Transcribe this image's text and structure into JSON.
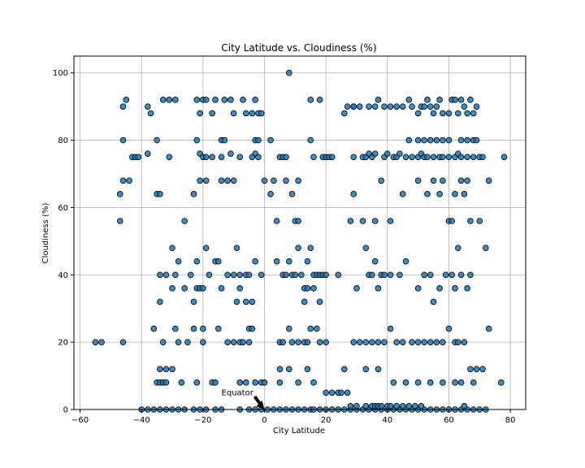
{
  "chart_data": {
    "type": "scatter",
    "title": "City Latitude vs. Cloudiness (%)",
    "xlabel": "City Latitude",
    "ylabel": "Cloudiness (%)",
    "xlim": [
      -62,
      85
    ],
    "ylim": [
      0,
      105
    ],
    "xticks": [
      -60,
      -40,
      -20,
      0,
      20,
      40,
      60,
      80
    ],
    "yticks": [
      0,
      20,
      40,
      60,
      80,
      100
    ],
    "grid": true,
    "marker_color": "#1f77b4",
    "marker_edge": "#000000",
    "annotation": {
      "text": "Equator",
      "x": 0,
      "y": 0,
      "text_x": -14,
      "text_y": 5
    },
    "points": [
      [
        -55,
        20
      ],
      [
        -53,
        20
      ],
      [
        -46,
        20
      ],
      [
        -47,
        56
      ],
      [
        -47,
        64
      ],
      [
        -46,
        68
      ],
      [
        -44,
        68
      ],
      [
        -43,
        75
      ],
      [
        -42,
        75
      ],
      [
        -41,
        75
      ],
      [
        -46,
        80
      ],
      [
        -46,
        90
      ],
      [
        -45,
        92
      ],
      [
        -38,
        76
      ],
      [
        -38,
        90
      ],
      [
        -37,
        88
      ],
      [
        -35,
        80
      ],
      [
        -33,
        92
      ],
      [
        -31,
        92
      ],
      [
        -29,
        92
      ],
      [
        -31,
        75
      ],
      [
        -35,
        64
      ],
      [
        -34,
        64
      ],
      [
        -40,
        0
      ],
      [
        -38,
        0
      ],
      [
        -36,
        0
      ],
      [
        -34,
        0
      ],
      [
        -32,
        0
      ],
      [
        -30,
        0
      ],
      [
        -28,
        0
      ],
      [
        -26,
        0
      ],
      [
        -23,
        0
      ],
      [
        -21,
        0
      ],
      [
        -19,
        0
      ],
      [
        -16,
        0
      ],
      [
        -14,
        0
      ],
      [
        -8,
        0
      ],
      [
        -5,
        0
      ],
      [
        -3,
        0
      ],
      [
        -1,
        0
      ],
      [
        -35,
        8
      ],
      [
        -34,
        8
      ],
      [
        -33,
        8
      ],
      [
        -32,
        8
      ],
      [
        -34,
        12
      ],
      [
        -32,
        12
      ],
      [
        -30,
        12
      ],
      [
        -27,
        8
      ],
      [
        -22,
        8
      ],
      [
        -17,
        8
      ],
      [
        -16,
        8
      ],
      [
        -8,
        8
      ],
      [
        -6,
        8
      ],
      [
        -3,
        8
      ],
      [
        -1,
        8
      ],
      [
        0,
        8
      ],
      [
        -36,
        24
      ],
      [
        -33,
        20
      ],
      [
        -29,
        24
      ],
      [
        -28,
        20
      ],
      [
        -25,
        20
      ],
      [
        -23,
        24
      ],
      [
        -20,
        20
      ],
      [
        -20,
        24
      ],
      [
        -15,
        24
      ],
      [
        -12,
        20
      ],
      [
        -10,
        20
      ],
      [
        -8,
        20
      ],
      [
        -7,
        20
      ],
      [
        -5,
        20
      ],
      [
        -5,
        24
      ],
      [
        -4,
        24
      ],
      [
        -34,
        32
      ],
      [
        -30,
        36
      ],
      [
        -26,
        36
      ],
      [
        -24,
        40
      ],
      [
        -23,
        32
      ],
      [
        -22,
        36
      ],
      [
        -21,
        36
      ],
      [
        -20,
        36
      ],
      [
        -14,
        36
      ],
      [
        -9,
        32
      ],
      [
        -8,
        36
      ],
      [
        -6,
        32
      ],
      [
        -4,
        32
      ],
      [
        -34,
        40
      ],
      [
        -32,
        40
      ],
      [
        -30,
        48
      ],
      [
        -29,
        40
      ],
      [
        -28,
        44
      ],
      [
        -22,
        44
      ],
      [
        -19,
        48
      ],
      [
        -18,
        40
      ],
      [
        -16,
        44
      ],
      [
        -15,
        44
      ],
      [
        -12,
        40
      ],
      [
        -10,
        40
      ],
      [
        -9,
        48
      ],
      [
        -8,
        40
      ],
      [
        -6,
        40
      ],
      [
        -5,
        40
      ],
      [
        -3,
        44
      ],
      [
        -1,
        40
      ],
      [
        -26,
        56
      ],
      [
        -23,
        64
      ],
      [
        -21,
        68
      ],
      [
        -19,
        68
      ],
      [
        -14,
        68
      ],
      [
        -12,
        68
      ],
      [
        -10,
        68
      ],
      [
        0,
        68
      ],
      [
        -17,
        75
      ],
      [
        -14,
        75
      ],
      [
        -11,
        76
      ],
      [
        -8,
        75
      ],
      [
        -4,
        75
      ],
      [
        -3,
        76
      ],
      [
        -2,
        75
      ],
      [
        -22,
        92
      ],
      [
        -21,
        88
      ],
      [
        -20,
        92
      ],
      [
        -19,
        92
      ],
      [
        -17,
        88
      ],
      [
        -16,
        92
      ],
      [
        -13,
        92
      ],
      [
        -11,
        92
      ],
      [
        -10,
        88
      ],
      [
        -7,
        92
      ],
      [
        -6,
        88
      ],
      [
        -4,
        88
      ],
      [
        -3,
        92
      ],
      [
        -2,
        88
      ],
      [
        -1,
        88
      ],
      [
        -22,
        80
      ],
      [
        -21,
        76
      ],
      [
        -20,
        75
      ],
      [
        -19,
        75
      ],
      [
        -14,
        80
      ],
      [
        -13,
        80
      ],
      [
        -3,
        80
      ],
      [
        -2,
        80
      ],
      [
        1,
        0
      ],
      [
        3,
        0
      ],
      [
        5,
        0
      ],
      [
        7,
        0
      ],
      [
        9,
        0
      ],
      [
        11,
        0
      ],
      [
        13,
        0
      ],
      [
        15,
        0
      ],
      [
        16,
        0
      ],
      [
        18,
        0
      ],
      [
        20,
        0
      ],
      [
        22,
        0
      ],
      [
        24,
        0
      ],
      [
        26,
        0
      ],
      [
        28,
        0
      ],
      [
        30,
        0
      ],
      [
        32,
        0
      ],
      [
        34,
        0
      ],
      [
        36,
        0
      ],
      [
        38,
        0
      ],
      [
        40,
        0
      ],
      [
        42,
        0
      ],
      [
        44,
        0
      ],
      [
        46,
        0
      ],
      [
        48,
        0
      ],
      [
        50,
        0
      ],
      [
        52,
        0
      ],
      [
        54,
        0
      ],
      [
        56,
        0
      ],
      [
        58,
        0
      ],
      [
        60,
        0
      ],
      [
        62,
        0
      ],
      [
        64,
        0
      ],
      [
        66,
        0
      ],
      [
        68,
        0
      ],
      [
        70,
        0
      ],
      [
        72,
        0
      ],
      [
        8,
        100
      ],
      [
        2,
        80
      ],
      [
        5,
        75
      ],
      [
        6,
        75
      ],
      [
        7,
        75
      ],
      [
        3,
        68
      ],
      [
        7,
        68
      ],
      [
        11,
        68
      ],
      [
        2,
        64
      ],
      [
        9,
        64
      ],
      [
        16,
        75
      ],
      [
        15,
        80
      ],
      [
        15,
        92
      ],
      [
        18,
        92
      ],
      [
        19,
        75
      ],
      [
        20,
        75
      ],
      [
        21,
        75
      ],
      [
        22,
        75
      ],
      [
        26,
        88
      ],
      [
        27,
        90
      ],
      [
        29,
        90
      ],
      [
        4,
        56
      ],
      [
        10,
        56
      ],
      [
        11,
        56
      ],
      [
        4,
        44
      ],
      [
        6,
        40
      ],
      [
        7,
        40
      ],
      [
        8,
        44
      ],
      [
        9,
        40
      ],
      [
        10,
        40
      ],
      [
        11,
        48
      ],
      [
        12,
        40
      ],
      [
        13,
        36
      ],
      [
        14,
        44
      ],
      [
        15,
        48
      ],
      [
        16,
        40
      ],
      [
        17,
        40
      ],
      [
        18,
        40
      ],
      [
        19,
        40
      ],
      [
        20,
        40
      ],
      [
        24,
        40
      ],
      [
        5,
        20
      ],
      [
        6,
        20
      ],
      [
        8,
        24
      ],
      [
        9,
        20
      ],
      [
        11,
        20
      ],
      [
        13,
        20
      ],
      [
        14,
        20
      ],
      [
        15,
        24
      ],
      [
        17,
        24
      ],
      [
        18,
        20
      ],
      [
        20,
        20
      ],
      [
        5,
        12
      ],
      [
        8,
        12
      ],
      [
        14,
        12
      ],
      [
        16,
        8
      ],
      [
        5,
        8
      ],
      [
        11,
        8
      ],
      [
        13,
        32
      ],
      [
        14,
        36
      ],
      [
        16,
        36
      ],
      [
        18,
        32
      ],
      [
        20,
        5
      ],
      [
        22,
        5
      ],
      [
        24,
        5
      ],
      [
        25,
        5
      ],
      [
        26,
        12
      ],
      [
        27,
        5
      ],
      [
        29,
        64
      ],
      [
        29,
        75
      ],
      [
        32,
        75
      ],
      [
        33,
        75
      ],
      [
        34,
        76
      ],
      [
        35,
        75
      ],
      [
        36,
        76
      ],
      [
        38,
        68
      ],
      [
        39,
        75
      ],
      [
        40,
        76
      ],
      [
        42,
        75
      ],
      [
        43,
        75
      ],
      [
        44,
        76
      ],
      [
        46,
        75
      ],
      [
        48,
        75
      ],
      [
        50,
        75
      ],
      [
        51,
        76
      ],
      [
        52,
        75
      ],
      [
        53,
        75
      ],
      [
        55,
        75
      ],
      [
        57,
        75
      ],
      [
        58,
        75
      ],
      [
        60,
        75
      ],
      [
        62,
        75
      ],
      [
        63,
        76
      ],
      [
        64,
        75
      ],
      [
        66,
        75
      ],
      [
        68,
        75
      ],
      [
        70,
        75
      ],
      [
        71,
        75
      ],
      [
        73,
        68
      ],
      [
        78,
        75
      ],
      [
        29,
        90
      ],
      [
        31,
        90
      ],
      [
        34,
        90
      ],
      [
        36,
        90
      ],
      [
        37,
        92
      ],
      [
        39,
        90
      ],
      [
        41,
        90
      ],
      [
        43,
        90
      ],
      [
        45,
        90
      ],
      [
        47,
        92
      ],
      [
        48,
        90
      ],
      [
        50,
        88
      ],
      [
        51,
        90
      ],
      [
        52,
        90
      ],
      [
        53,
        92
      ],
      [
        54,
        90
      ],
      [
        55,
        88
      ],
      [
        56,
        90
      ],
      [
        57,
        92
      ],
      [
        58,
        88
      ],
      [
        60,
        88
      ],
      [
        61,
        92
      ],
      [
        62,
        92
      ],
      [
        63,
        88
      ],
      [
        64,
        92
      ],
      [
        65,
        90
      ],
      [
        66,
        88
      ],
      [
        67,
        92
      ],
      [
        68,
        88
      ],
      [
        69,
        90
      ],
      [
        47,
        80
      ],
      [
        50,
        80
      ],
      [
        52,
        80
      ],
      [
        54,
        80
      ],
      [
        56,
        80
      ],
      [
        58,
        80
      ],
      [
        60,
        80
      ],
      [
        64,
        80
      ],
      [
        66,
        80
      ],
      [
        68,
        80
      ],
      [
        69,
        80
      ],
      [
        28,
        56
      ],
      [
        32,
        56
      ],
      [
        36,
        56
      ],
      [
        41,
        56
      ],
      [
        45,
        64
      ],
      [
        50,
        68
      ],
      [
        53,
        64
      ],
      [
        55,
        68
      ],
      [
        57,
        64
      ],
      [
        58,
        68
      ],
      [
        60,
        56
      ],
      [
        61,
        56
      ],
      [
        62,
        64
      ],
      [
        64,
        68
      ],
      [
        65,
        64
      ],
      [
        66,
        68
      ],
      [
        67,
        56
      ],
      [
        70,
        56
      ],
      [
        72,
        48
      ],
      [
        30,
        36
      ],
      [
        33,
        48
      ],
      [
        34,
        40
      ],
      [
        35,
        40
      ],
      [
        36,
        44
      ],
      [
        37,
        36
      ],
      [
        38,
        40
      ],
      [
        39,
        40
      ],
      [
        41,
        40
      ],
      [
        44,
        40
      ],
      [
        46,
        44
      ],
      [
        50,
        36
      ],
      [
        52,
        40
      ],
      [
        54,
        40
      ],
      [
        55,
        32
      ],
      [
        57,
        36
      ],
      [
        59,
        40
      ],
      [
        61,
        40
      ],
      [
        62,
        36
      ],
      [
        63,
        48
      ],
      [
        64,
        40
      ],
      [
        66,
        36
      ],
      [
        67,
        40
      ],
      [
        29,
        20
      ],
      [
        31,
        20
      ],
      [
        33,
        20
      ],
      [
        35,
        20
      ],
      [
        37,
        20
      ],
      [
        39,
        20
      ],
      [
        41,
        24
      ],
      [
        43,
        20
      ],
      [
        45,
        20
      ],
      [
        48,
        20
      ],
      [
        50,
        20
      ],
      [
        52,
        20
      ],
      [
        54,
        20
      ],
      [
        56,
        20
      ],
      [
        58,
        20
      ],
      [
        60,
        24
      ],
      [
        62,
        20
      ],
      [
        63,
        20
      ],
      [
        65,
        20
      ],
      [
        67,
        12
      ],
      [
        69,
        12
      ],
      [
        71,
        12
      ],
      [
        73,
        24
      ],
      [
        33,
        12
      ],
      [
        37,
        12
      ],
      [
        42,
        8
      ],
      [
        46,
        8
      ],
      [
        50,
        8
      ],
      [
        54,
        8
      ],
      [
        58,
        8
      ],
      [
        62,
        8
      ],
      [
        64,
        8
      ],
      [
        68,
        8
      ],
      [
        77,
        8
      ],
      [
        28,
        1
      ],
      [
        30,
        1
      ],
      [
        33,
        1
      ],
      [
        35,
        1
      ],
      [
        36,
        1
      ],
      [
        37,
        1
      ],
      [
        38,
        1
      ],
      [
        40,
        1
      ],
      [
        41,
        1
      ],
      [
        43,
        1
      ],
      [
        45,
        1
      ],
      [
        47,
        1
      ],
      [
        49,
        1
      ],
      [
        51,
        1
      ],
      [
        65,
        1
      ]
    ]
  }
}
